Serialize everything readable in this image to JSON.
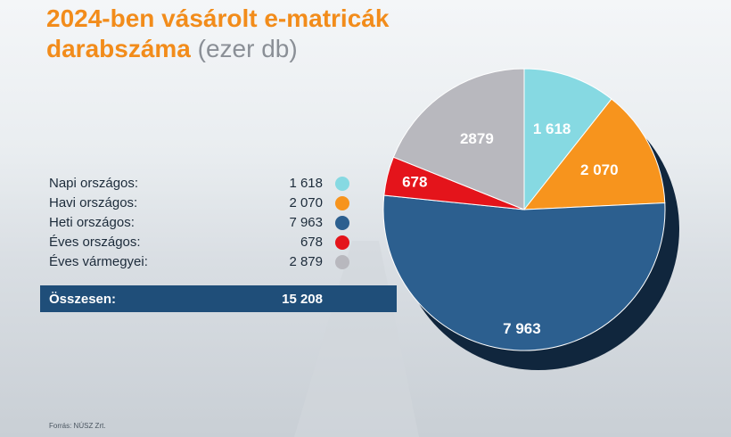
{
  "chart_data": {
    "type": "pie",
    "title": "2024-ben vásárolt e-matricák",
    "title_line2": "darabszáma",
    "unit": "(ezer db)",
    "categories": [
      "Napi országos:",
      "Havi országos:",
      "Heti országos:",
      "Éves országos:",
      "Éves vármegyei:"
    ],
    "values": [
      1618,
      2070,
      7963,
      678,
      2879
    ],
    "value_labels": [
      "1 618",
      "2 070",
      "7 963",
      "678",
      "2 879"
    ],
    "slice_labels": [
      "1 618",
      "2 070",
      "7 963",
      "678",
      "2879"
    ],
    "colors": [
      "#86d9e2",
      "#f7941d",
      "#2c5f8f",
      "#e4141b",
      "#b8b8be"
    ],
    "total_label": "Összesen:",
    "total": {
      "value": 15208,
      "label": "15 208"
    },
    "source": "Forrás: NÚSZ Zrt."
  }
}
